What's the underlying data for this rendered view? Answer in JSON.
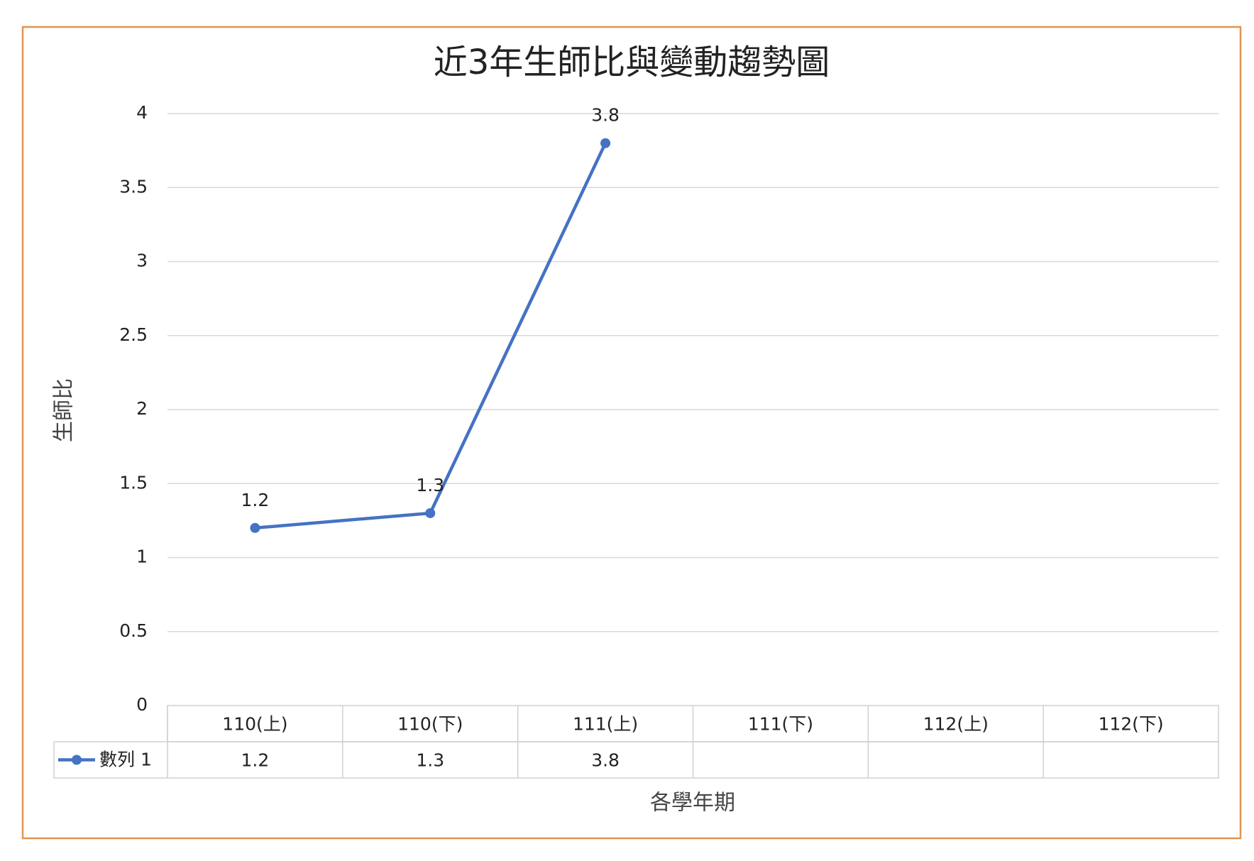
{
  "chart_data": {
    "type": "line",
    "title": "近3年生師比與變動趨勢圖",
    "x_label": "各學年期",
    "y_label": "生師比",
    "categories": [
      "110(上)",
      "110(下)",
      "111(上)",
      "111(下)",
      "112(上)",
      "112(下)"
    ],
    "series": [
      {
        "name": "數列 1",
        "color": "#4472c4",
        "values": [
          1.2,
          1.3,
          3.8,
          null,
          null,
          null
        ]
      }
    ],
    "ylim": [
      0,
      4
    ],
    "yticks": [
      0,
      0.5,
      1,
      1.5,
      2,
      2.5,
      3,
      3.5,
      4
    ],
    "grid": true,
    "data_table": true
  }
}
